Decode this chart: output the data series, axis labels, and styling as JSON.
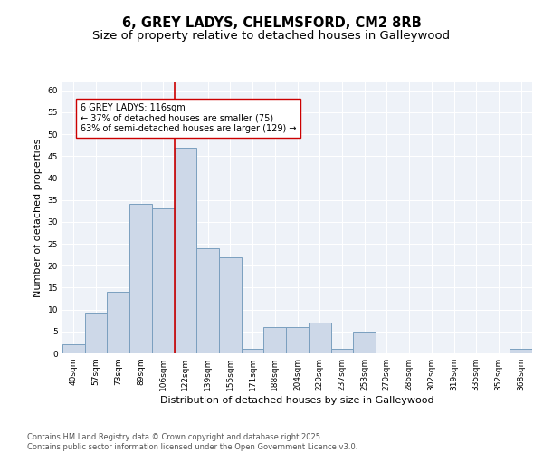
{
  "title_line1": "6, GREY LADYS, CHELMSFORD, CM2 8RB",
  "title_line2": "Size of property relative to detached houses in Galleywood",
  "xlabel": "Distribution of detached houses by size in Galleywood",
  "ylabel": "Number of detached properties",
  "categories": [
    "40sqm",
    "57sqm",
    "73sqm",
    "89sqm",
    "106sqm",
    "122sqm",
    "139sqm",
    "155sqm",
    "171sqm",
    "188sqm",
    "204sqm",
    "220sqm",
    "237sqm",
    "253sqm",
    "270sqm",
    "286sqm",
    "302sqm",
    "319sqm",
    "335sqm",
    "352sqm",
    "368sqm"
  ],
  "values": [
    2,
    9,
    14,
    34,
    33,
    47,
    24,
    22,
    1,
    6,
    6,
    7,
    1,
    5,
    0,
    0,
    0,
    0,
    0,
    0,
    1
  ],
  "bar_face_color": "#cdd8e8",
  "bar_edge_color": "#7a9fbf",
  "vline_color": "#cc0000",
  "vline_index": 4.5,
  "annotation_box_text": "6 GREY LADYS: 116sqm\n← 37% of detached houses are smaller (75)\n63% of semi-detached houses are larger (129) →",
  "ylim": [
    0,
    62
  ],
  "yticks": [
    0,
    5,
    10,
    15,
    20,
    25,
    30,
    35,
    40,
    45,
    50,
    55,
    60
  ],
  "bg_color": "#eef2f8",
  "grid_color": "#ffffff",
  "footer": "Contains HM Land Registry data © Crown copyright and database right 2025.\nContains public sector information licensed under the Open Government Licence v3.0.",
  "title_fontsize": 10.5,
  "subtitle_fontsize": 9.5,
  "axis_label_fontsize": 8,
  "tick_fontsize": 6.5,
  "annotation_fontsize": 7,
  "footer_fontsize": 6
}
